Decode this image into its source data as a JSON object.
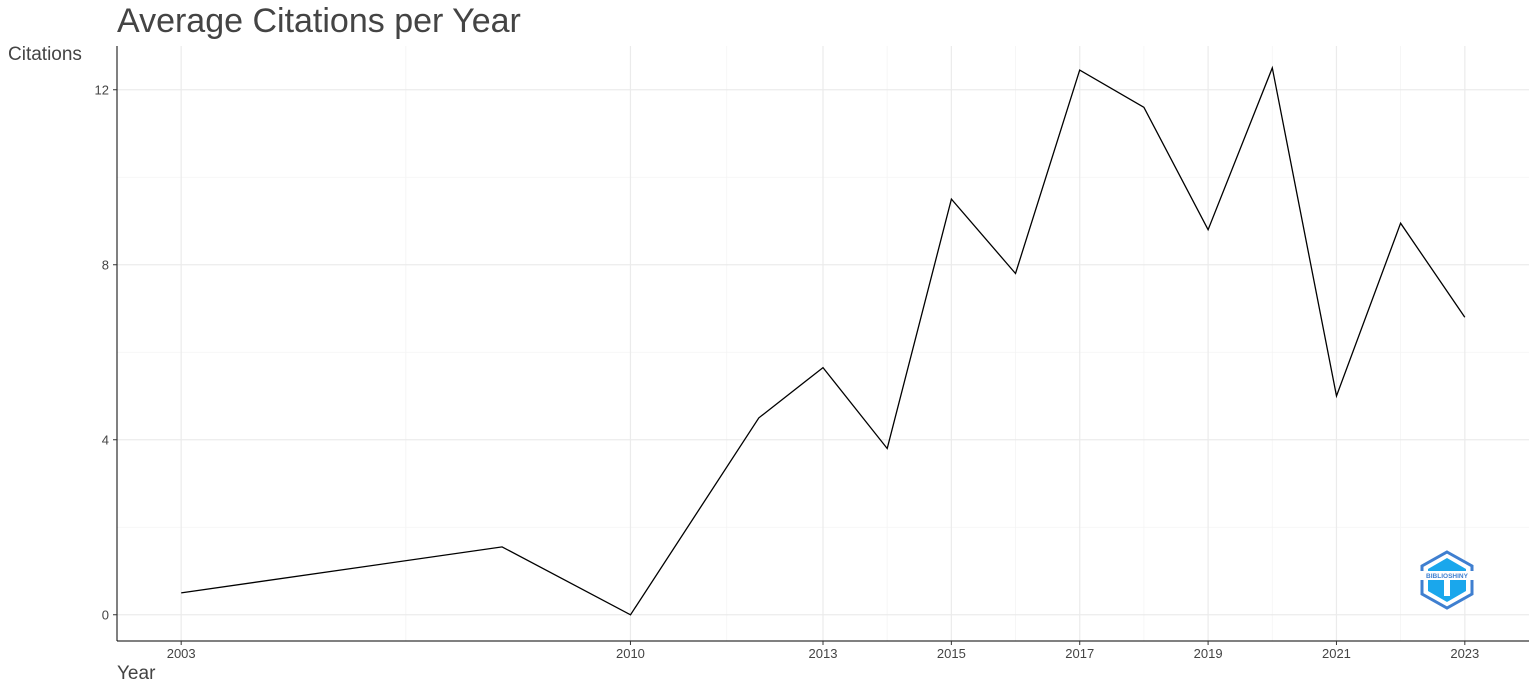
{
  "chart_data": {
    "type": "line",
    "title": "Average Citations per Year",
    "xlabel": "Year",
    "ylabel": "Citations",
    "x": [
      2003,
      2008,
      2010,
      2012,
      2013,
      2014,
      2015,
      2016,
      2017,
      2018,
      2019,
      2020,
      2021,
      2022,
      2023
    ],
    "values": [
      0.5,
      1.55,
      0,
      4.5,
      5.65,
      3.8,
      9.5,
      7.8,
      12.45,
      11.6,
      8.8,
      12.5,
      5.0,
      8.95,
      6.8
    ],
    "x_ticks": [
      2003,
      2010,
      2013,
      2015,
      2017,
      2019,
      2021,
      2023
    ],
    "y_ticks": [
      0,
      4,
      8,
      12
    ],
    "xlim": [
      2002,
      2024
    ],
    "ylim": [
      -0.6,
      13.0
    ],
    "grid": true,
    "line_color": "#000000",
    "logo": {
      "text": "BIBLIOSHINY",
      "colors": [
        "#3f7fd0",
        "#1aa7ec",
        "#3cc4f5"
      ]
    }
  }
}
